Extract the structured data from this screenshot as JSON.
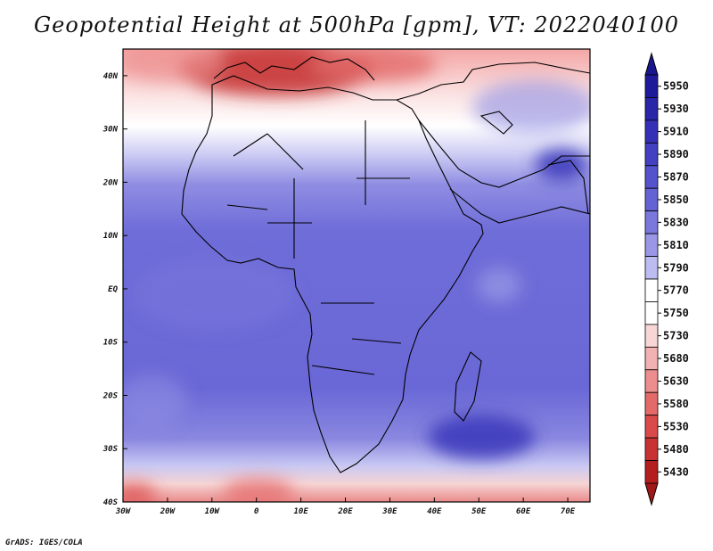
{
  "title": "Geopotential Height at 500hPa [gpm], VT: 2022040100",
  "credit": "GrADS: IGES/COLA",
  "map": {
    "lon_range": [
      -30,
      75
    ],
    "lat_range": [
      -40,
      45
    ],
    "lon_ticks": [
      {
        "value": -30,
        "label": "30W"
      },
      {
        "value": -20,
        "label": "20W"
      },
      {
        "value": -10,
        "label": "10W"
      },
      {
        "value": 0,
        "label": "0"
      },
      {
        "value": 10,
        "label": "10E"
      },
      {
        "value": 20,
        "label": "20E"
      },
      {
        "value": 30,
        "label": "30E"
      },
      {
        "value": 40,
        "label": "40E"
      },
      {
        "value": 50,
        "label": "50E"
      },
      {
        "value": 60,
        "label": "60E"
      },
      {
        "value": 70,
        "label": "70E"
      }
    ],
    "lat_ticks": [
      {
        "value": 40,
        "label": "40N"
      },
      {
        "value": 30,
        "label": "30N"
      },
      {
        "value": 20,
        "label": "20N"
      },
      {
        "value": 10,
        "label": "10N"
      },
      {
        "value": 0,
        "label": "EQ"
      },
      {
        "value": -10,
        "label": "10S"
      },
      {
        "value": -20,
        "label": "20S"
      },
      {
        "value": -30,
        "label": "30S"
      },
      {
        "value": -40,
        "label": "40S"
      }
    ]
  },
  "colorbar": {
    "levels": [
      {
        "label": "5950",
        "color": "#1e1a9a"
      },
      {
        "label": "5930",
        "color": "#2a26a8"
      },
      {
        "label": "5910",
        "color": "#3531b6"
      },
      {
        "label": "5890",
        "color": "#4340c2"
      },
      {
        "label": "5870",
        "color": "#5452cc"
      },
      {
        "label": "5850",
        "color": "#6563d4"
      },
      {
        "label": "5830",
        "color": "#7a78dc"
      },
      {
        "label": "5810",
        "color": "#9a98e6"
      },
      {
        "label": "5790",
        "color": "#bdbcf0"
      },
      {
        "label": "5770",
        "color": "#ffffff"
      },
      {
        "label": "5750",
        "color": "#ffffff"
      },
      {
        "label": "5730",
        "color": "#f8d6d6"
      },
      {
        "label": "5680",
        "color": "#f2b2b2"
      },
      {
        "label": "5630",
        "color": "#ec8e8e"
      },
      {
        "label": "5580",
        "color": "#e46a6a"
      },
      {
        "label": "5530",
        "color": "#da4a4a"
      },
      {
        "label": "5480",
        "color": "#c83232"
      },
      {
        "label": "5430",
        "color": "#b41e1e"
      }
    ]
  }
}
